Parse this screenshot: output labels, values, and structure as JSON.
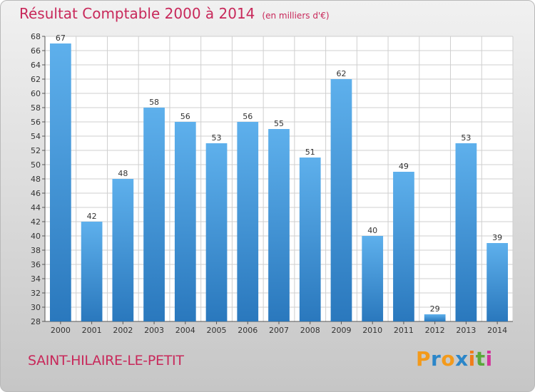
{
  "title": "Résultat Comptable 2000 à 2014",
  "subtitle": "(en milliers d'€)",
  "commune": "SAINT-HILAIRE-LE-PETIT",
  "logo": {
    "text": "Proxiti",
    "letters": [
      {
        "ch": "P",
        "color": "#f39a1b"
      },
      {
        "ch": "r",
        "color": "#2b86c9"
      },
      {
        "ch": "o",
        "color": "#f39a1b"
      },
      {
        "ch": "x",
        "color": "#2b86c9"
      },
      {
        "ch": "i",
        "color": "#ef7d1a"
      },
      {
        "ch": "t",
        "color": "#5aa83a"
      },
      {
        "ch": "i",
        "color": "#d2349a"
      }
    ]
  },
  "colors": {
    "bar_light": "#5eb0ec",
    "bar_dark": "#2a78bd",
    "grid": "#cfcfcf",
    "accent": "#c8285a"
  },
  "chart_data": {
    "type": "bar",
    "categories": [
      "2000",
      "2001",
      "2002",
      "2003",
      "2004",
      "2005",
      "2006",
      "2007",
      "2008",
      "2009",
      "2010",
      "2011",
      "2012",
      "2013",
      "2014"
    ],
    "values": [
      67,
      42,
      48,
      58,
      56,
      53,
      56,
      55,
      51,
      62,
      40,
      49,
      29,
      53,
      39
    ],
    "ylim": [
      28,
      68
    ],
    "ytick_step": 2,
    "grid": true
  }
}
